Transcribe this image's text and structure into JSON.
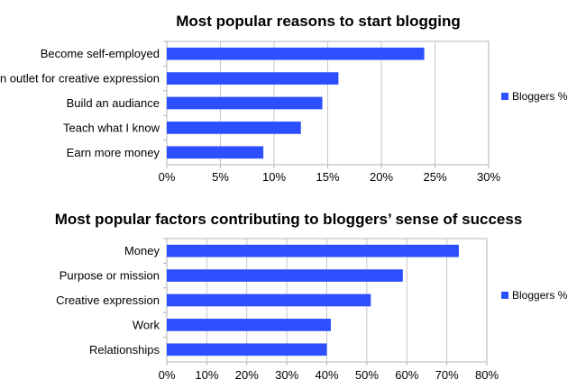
{
  "chart_data": [
    {
      "type": "bar",
      "orientation": "horizontal",
      "title": "Most popular reasons to start blogging",
      "categories": [
        "Become self-employed",
        "An outlet for creative expression",
        "Build an audiance",
        "Teach what I know",
        "Earn more money"
      ],
      "series": [
        {
          "name": "Bloggers %",
          "values": [
            24,
            16,
            14.5,
            12.5,
            9
          ]
        }
      ],
      "xlim": [
        0,
        30
      ],
      "xticks": [
        "0%",
        "5%",
        "10%",
        "15%",
        "20%",
        "25%",
        "30%"
      ],
      "tick_values": [
        0,
        5,
        10,
        15,
        20,
        25,
        30
      ],
      "grid": true,
      "legend": "right",
      "color": "#2d4fff"
    },
    {
      "type": "bar",
      "orientation": "horizontal",
      "title": "Most popular factors contributing to bloggers’ sense of success",
      "categories": [
        "Money",
        "Purpose or mission",
        "Creative expression",
        "Work",
        "Relationships"
      ],
      "series": [
        {
          "name": "Bloggers %",
          "values": [
            73,
            59,
            51,
            41,
            40
          ]
        }
      ],
      "xlim": [
        0,
        80
      ],
      "xticks": [
        "0%",
        "10%",
        "20%",
        "30%",
        "40%",
        "50%",
        "60%",
        "70%",
        "80%"
      ],
      "tick_values": [
        0,
        10,
        20,
        30,
        40,
        50,
        60,
        70,
        80
      ],
      "grid": true,
      "legend": "right",
      "color": "#2d4fff"
    }
  ]
}
